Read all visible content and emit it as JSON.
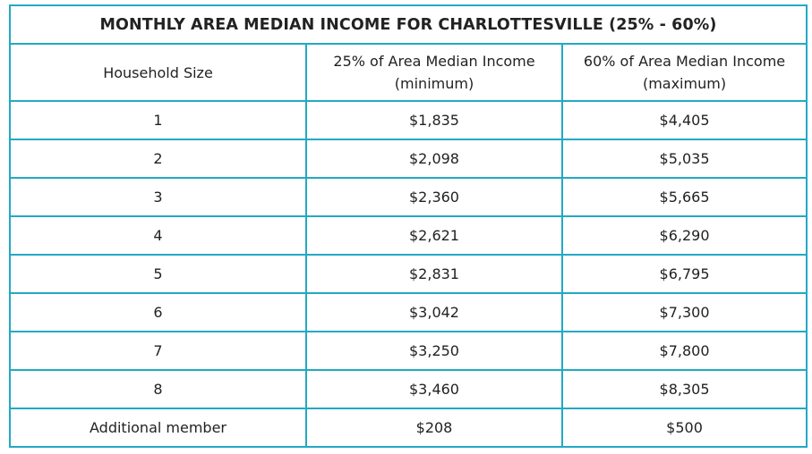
{
  "table": {
    "title": "MONTHLY AREA MEDIAN INCOME FOR CHARLOTTESVILLE (25% - 60%)",
    "headers": {
      "household_size": "Household Size",
      "col_25_line1": "25% of Area Median Income",
      "col_25_line2": "(minimum)",
      "col_60_line1": "60% of Area Median Income",
      "col_60_line2": "(maximum)"
    },
    "rows": [
      {
        "size": "1",
        "min": "$1,835",
        "max": "$4,405"
      },
      {
        "size": "2",
        "min": "$2,098",
        "max": "$5,035"
      },
      {
        "size": "3",
        "min": "$2,360",
        "max": "$5,665"
      },
      {
        "size": "4",
        "min": "$2,621",
        "max": "$6,290"
      },
      {
        "size": "5",
        "min": "$2,831",
        "max": "$6,795"
      },
      {
        "size": "6",
        "min": "$3,042",
        "max": "$7,300"
      },
      {
        "size": "7",
        "min": "$3,250",
        "max": "$7,800"
      },
      {
        "size": "8",
        "min": "$3,460",
        "max": "$8,305"
      },
      {
        "size": "Additional member",
        "min": "$208",
        "max": "$500"
      }
    ]
  },
  "colors": {
    "border": "#22a9c4",
    "text": "#222222",
    "background": "#ffffff"
  }
}
